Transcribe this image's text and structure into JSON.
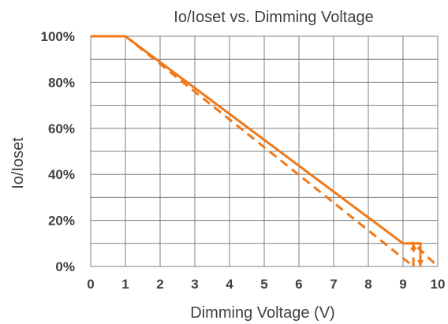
{
  "chart_data": {
    "type": "line",
    "title": "Io/Ioset vs. Dimming Voltage",
    "xlabel": "Dimming Voltage (V)",
    "ylabel": "Io/Ioset",
    "xlim": [
      0,
      10
    ],
    "ylim": [
      0,
      100
    ],
    "x_ticks": [
      "0",
      "1",
      "2",
      "3",
      "4",
      "5",
      "6",
      "7",
      "8",
      "9",
      "10"
    ],
    "y_ticks": [
      "0%",
      "20%",
      "40%",
      "60%",
      "80%",
      "100%"
    ],
    "grid": true,
    "legend": "none",
    "series": [
      {
        "style": "solid",
        "color": "#f07818",
        "x": [
          0,
          1,
          9,
          9.5,
          9.5
        ],
        "y": [
          100,
          100,
          10,
          10,
          0
        ]
      },
      {
        "style": "dashed",
        "color": "#f07818",
        "x": [
          1,
          9.3,
          9.3,
          10
        ],
        "y": [
          100,
          0,
          10,
          0
        ]
      }
    ]
  }
}
